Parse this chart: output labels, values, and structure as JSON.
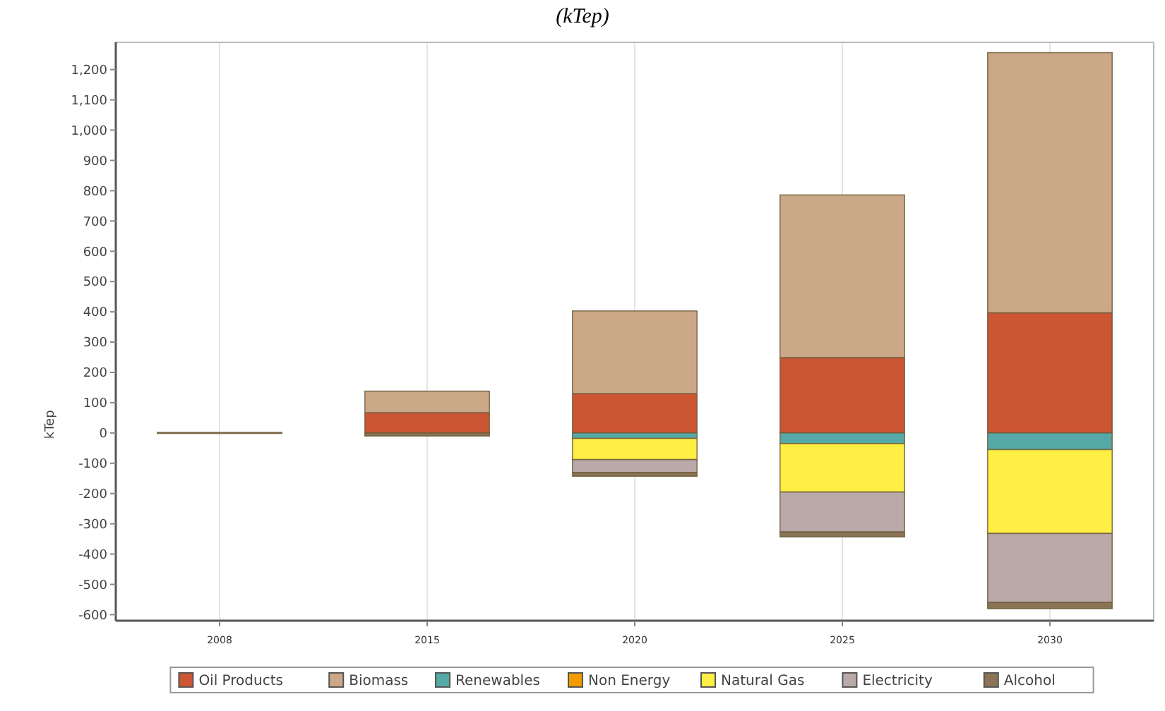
{
  "chart_data": {
    "type": "bar",
    "title": "(kTep)",
    "ylabel": "kTep",
    "categories": [
      "2008",
      "2015",
      "2020",
      "2025",
      "2030"
    ],
    "stacked": true,
    "ylim": [
      -620,
      1290
    ],
    "yticks": [
      {
        "value": -600,
        "label": "-600"
      },
      {
        "value": -500,
        "label": "-500"
      },
      {
        "value": -400,
        "label": "-400"
      },
      {
        "value": -300,
        "label": "-300"
      },
      {
        "value": -200,
        "label": "-200"
      },
      {
        "value": -100,
        "label": "-100"
      },
      0,
      100,
      200,
      300,
      400,
      500,
      600,
      700,
      800,
      900,
      {
        "value": 1000,
        "label": "1,000"
      },
      {
        "value": 1100,
        "label": "1,100"
      },
      {
        "value": 1200,
        "label": "1,200"
      }
    ],
    "grid": "x",
    "legend": "bottom",
    "series": [
      {
        "name": "Oil Products",
        "color": "#cc5533",
        "values": [
          0,
          67,
          130,
          249,
          397
        ]
      },
      {
        "name": "Biomass",
        "color": "#cba888",
        "values": [
          2,
          71,
          273,
          537,
          859
        ]
      },
      {
        "name": "Renewables",
        "color": "#55aaa8",
        "values": [
          0,
          0,
          -18,
          -35,
          -55
        ]
      },
      {
        "name": "Non Energy",
        "color": "#f29a00",
        "values": [
          0,
          0,
          0,
          0,
          0
        ]
      },
      {
        "name": "Natural Gas",
        "color": "#ffee44",
        "values": [
          0,
          0,
          -70,
          -160,
          -277
        ]
      },
      {
        "name": "Electricity",
        "color": "#b9a9a9",
        "values": [
          0,
          0,
          -43,
          -132,
          -227
        ]
      },
      {
        "name": "Alcohol",
        "color": "#8b7355",
        "values": [
          0,
          -10,
          -12,
          -16,
          -21
        ]
      }
    ]
  }
}
